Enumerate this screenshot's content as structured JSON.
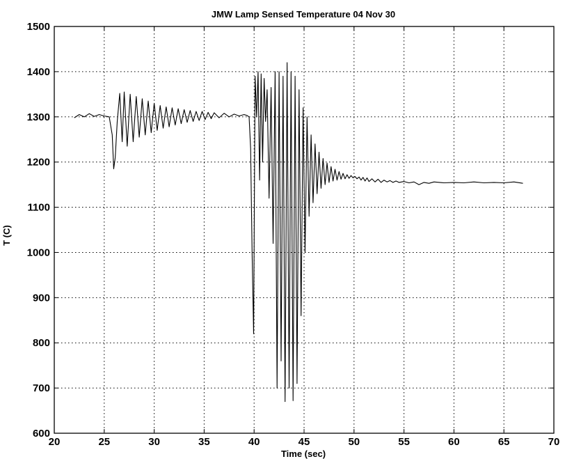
{
  "chart_data": {
    "type": "line",
    "title": "JMW Lamp Sensed Temperature  04 Nov 30",
    "xlabel": "Time  (sec)",
    "ylabel": "T (C)",
    "xlim": [
      20,
      70
    ],
    "ylim": [
      600,
      1500
    ],
    "xticks": [
      20,
      25,
      30,
      35,
      40,
      45,
      50,
      55,
      60,
      65,
      70
    ],
    "yticks": [
      600,
      700,
      800,
      900,
      1000,
      1100,
      1200,
      1300,
      1400,
      1500
    ],
    "grid": true,
    "legend": "none",
    "series": [
      {
        "color": "#000000",
        "x": [
          22.0,
          22.5,
          23.0,
          23.5,
          24.0,
          24.5,
          25.0,
          25.5,
          25.8,
          25.95,
          26.1,
          26.3,
          26.55,
          26.8,
          27.0,
          27.3,
          27.6,
          27.9,
          28.2,
          28.5,
          28.8,
          29.1,
          29.4,
          29.7,
          30.0,
          30.3,
          30.6,
          30.9,
          31.2,
          31.5,
          31.8,
          32.1,
          32.4,
          32.7,
          33.0,
          33.3,
          33.6,
          33.9,
          34.2,
          34.5,
          34.8,
          35.1,
          35.4,
          35.7,
          36.0,
          36.5,
          37.0,
          37.5,
          38.0,
          38.5,
          39.0,
          39.3,
          39.5,
          39.65,
          39.8,
          39.95,
          40.1,
          40.25,
          40.4,
          40.55,
          40.7,
          40.85,
          41.0,
          41.15,
          41.3,
          41.5,
          41.7,
          41.9,
          42.1,
          42.3,
          42.5,
          42.7,
          42.9,
          43.1,
          43.3,
          43.5,
          43.7,
          43.9,
          44.1,
          44.3,
          44.5,
          44.7,
          44.9,
          45.1,
          45.3,
          45.5,
          45.7,
          45.9,
          46.1,
          46.3,
          46.5,
          46.7,
          46.9,
          47.1,
          47.3,
          47.5,
          47.7,
          47.9,
          48.1,
          48.3,
          48.5,
          48.7,
          48.9,
          49.1,
          49.3,
          49.5,
          49.7,
          49.9,
          50.1,
          50.3,
          50.5,
          50.7,
          50.9,
          51.1,
          51.3,
          51.5,
          51.8,
          52.1,
          52.4,
          52.7,
          53.0,
          53.3,
          53.6,
          53.9,
          54.2,
          54.5,
          55.0,
          55.5,
          56.0,
          56.5,
          57.0,
          57.5,
          58.0,
          59.0,
          60.0,
          61.0,
          62.0,
          63.0,
          64.0,
          65.0,
          66.0,
          66.9
        ],
        "y": [
          1298,
          1305,
          1300,
          1307,
          1301,
          1305,
          1302,
          1300,
          1260,
          1185,
          1210,
          1290,
          1352,
          1245,
          1355,
          1235,
          1350,
          1245,
          1345,
          1255,
          1340,
          1260,
          1335,
          1265,
          1330,
          1270,
          1325,
          1275,
          1322,
          1278,
          1320,
          1282,
          1318,
          1285,
          1316,
          1288,
          1314,
          1290,
          1312,
          1292,
          1312,
          1294,
          1310,
          1296,
          1309,
          1298,
          1308,
          1300,
          1306,
          1302,
          1305,
          1303,
          1300,
          1230,
          1000,
          820,
          1390,
          1300,
          1400,
          1160,
          1395,
          1200,
          1385,
          1290,
          1360,
          1120,
          1365,
          1020,
          1400,
          700,
          1400,
          760,
          1390,
          670,
          1420,
          700,
          1400,
          672,
          1390,
          710,
          1360,
          860,
          1320,
          1000,
          1300,
          1080,
          1260,
          1110,
          1240,
          1130,
          1222,
          1142,
          1208,
          1150,
          1198,
          1155,
          1190,
          1158,
          1184,
          1160,
          1179,
          1162,
          1175,
          1163,
          1172,
          1164,
          1170,
          1165,
          1168,
          1163,
          1167,
          1160,
          1166,
          1158,
          1165,
          1157,
          1163,
          1156,
          1162,
          1155,
          1160,
          1156,
          1159,
          1155,
          1158,
          1155,
          1157,
          1154,
          1156,
          1150,
          1155,
          1153,
          1156,
          1154,
          1155,
          1154,
          1156,
          1154,
          1155,
          1154,
          1156,
          1153
        ]
      }
    ]
  }
}
